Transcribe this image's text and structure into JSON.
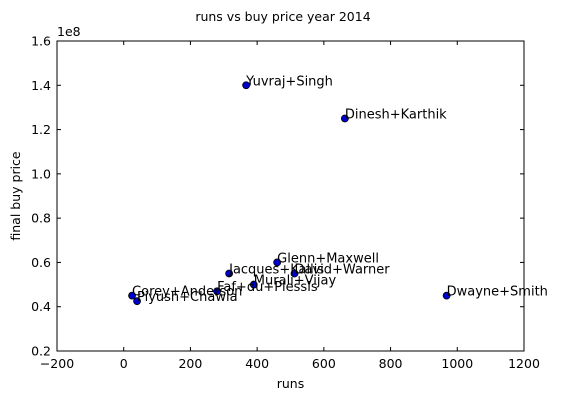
{
  "chart_data": {
    "type": "scatter",
    "title": "runs vs buy price year 2014",
    "xlabel": "runs",
    "ylabel": "final buy price",
    "y_multiplier_label": "1e8",
    "xlim": [
      -200,
      1200
    ],
    "ylim": [
      0.2,
      1.6
    ],
    "xticks": [
      -200,
      0,
      200,
      400,
      600,
      800,
      1000,
      1200
    ],
    "yticks": [
      0.2,
      0.4,
      0.6,
      0.8,
      1.0,
      1.2,
      1.4,
      1.6
    ],
    "xtick_labels": [
      "−200",
      "0",
      "200",
      "400",
      "600",
      "800",
      "1000",
      "1200"
    ],
    "ytick_labels": [
      "0.2",
      "0.4",
      "0.6",
      "0.8",
      "1.0",
      "1.2",
      "1.4",
      "1.6"
    ],
    "grid": false,
    "marker_color": "#0000cc",
    "points": [
      {
        "label": "Yuvraj+Singh",
        "x": 367,
        "y": 1.4
      },
      {
        "label": "Dinesh+Karthik",
        "x": 663,
        "y": 1.25
      },
      {
        "label": "Glenn+Maxwell",
        "x": 460,
        "y": 0.6
      },
      {
        "label": "David+Warner",
        "x": 512,
        "y": 0.55
      },
      {
        "label": "Jacques+Kallis",
        "x": 316,
        "y": 0.55
      },
      {
        "label": "Murali+Vijay",
        "x": 390,
        "y": 0.5
      },
      {
        "label": "Faf+du+Plessis",
        "x": 280,
        "y": 0.47
      },
      {
        "label": "Corey+Anderson",
        "x": 25,
        "y": 0.45
      },
      {
        "label": "Piyush+Chawla",
        "x": 40,
        "y": 0.425
      },
      {
        "label": "Dwayne+Smith",
        "x": 968,
        "y": 0.45
      }
    ]
  }
}
